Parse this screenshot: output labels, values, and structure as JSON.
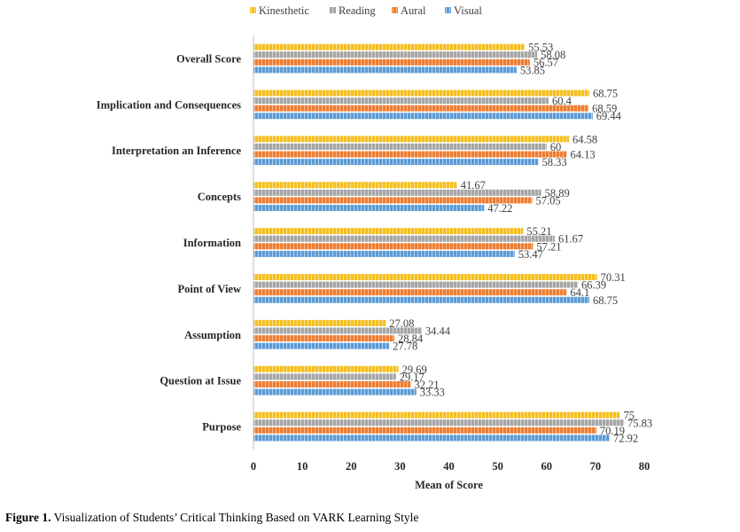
{
  "chart_data": {
    "type": "bar",
    "orientation": "horizontal",
    "categories": [
      "Overall Score",
      "Implication and Consequences",
      "Interpretation an Inference",
      "Concepts",
      "Information",
      "Point of View",
      "Assumption",
      "Question at Issue",
      "Purpose"
    ],
    "series": [
      {
        "name": "Kinesthetic",
        "color": "#F5BE1E",
        "values": [
          55.53,
          68.75,
          64.58,
          41.67,
          55.21,
          70.31,
          27.08,
          29.69,
          75
        ],
        "labels": [
          "55.53",
          "68.75",
          "64.58",
          "41.67",
          "55.21",
          "70.31",
          "27.08",
          "29.69",
          "75"
        ]
      },
      {
        "name": "Reading",
        "color": "#A5A5A5",
        "values": [
          58.08,
          60.4,
          60,
          58.89,
          61.67,
          66.39,
          34.44,
          29.17,
          75.83
        ],
        "labels": [
          "58.08",
          "60.4",
          "60",
          "58.89",
          "61.67",
          "66.39",
          "34.44",
          "29.17",
          "75.83"
        ]
      },
      {
        "name": "Aural",
        "color": "#ED7D31",
        "values": [
          56.57,
          68.59,
          64.13,
          57.05,
          57.21,
          64.1,
          28.84,
          32.21,
          70.19
        ],
        "labels": [
          "56.57",
          "68.59",
          "64.13",
          "57.05",
          "57.21",
          "64.1",
          "28.84",
          "32.21",
          "70.19"
        ]
      },
      {
        "name": "Visual",
        "color": "#5B9BD5",
        "values": [
          53.85,
          69.44,
          58.33,
          47.22,
          53.47,
          68.75,
          27.78,
          33.33,
          72.92
        ],
        "labels": [
          "53.85",
          "69.44",
          "58.33",
          "47.22",
          "53.47",
          "68.75",
          "27.78",
          "33.33",
          "72.92"
        ]
      }
    ],
    "xlabel": "Mean of Score",
    "ylabel": "",
    "xlim": [
      0,
      80
    ],
    "xticks": [
      "0",
      "10",
      "20",
      "30",
      "40",
      "50",
      "60",
      "70",
      "80"
    ],
    "legend_position": "top",
    "grid": false,
    "bar_pattern": "dashed"
  },
  "caption": {
    "label": "Figure 1.",
    "text": " Visualization of Students’ Critical Thinking Based on VARK Learning Style"
  }
}
